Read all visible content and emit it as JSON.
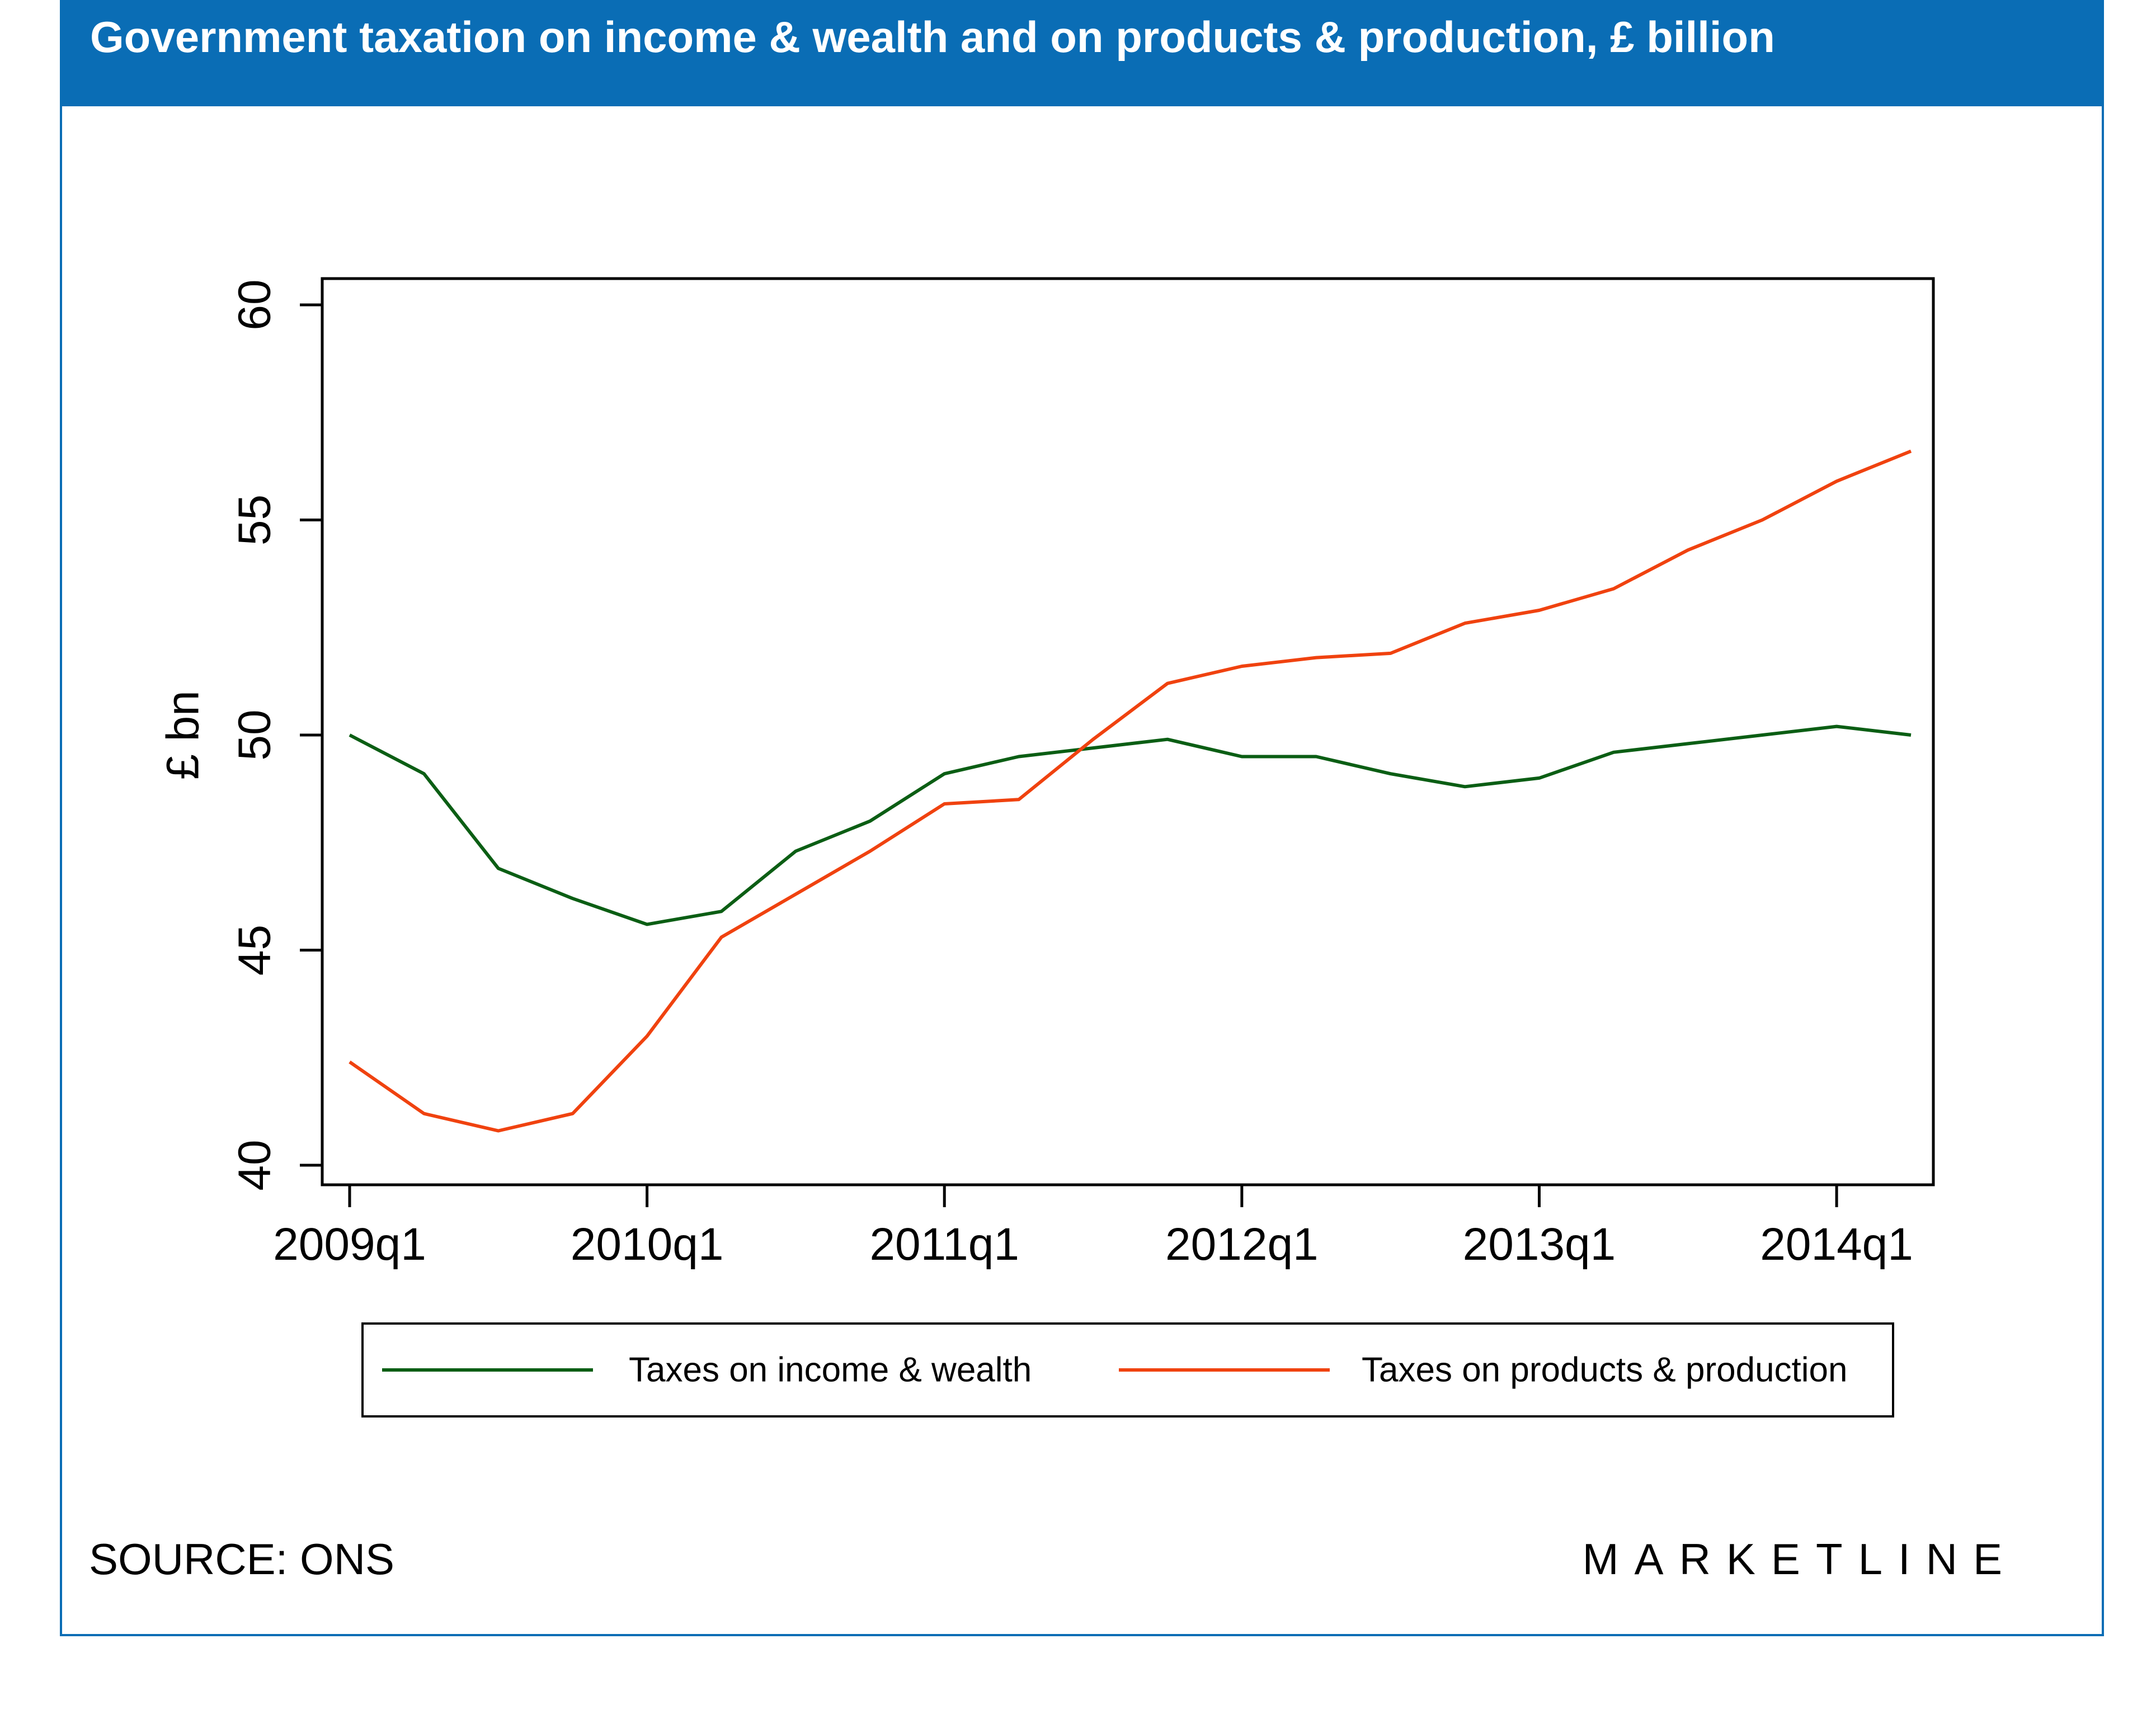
{
  "header": {
    "title": "Government taxation on income & wealth and on products & production, £ billion"
  },
  "footer": {
    "source": "SOURCE: ONS",
    "brand": "MARKETLINE"
  },
  "colors": {
    "accent": "#0a6db5",
    "income": "#0b5e14",
    "products": "#f0420f"
  },
  "chart_data": {
    "type": "line",
    "x": [
      "2009q1",
      "2009q2",
      "2009q3",
      "2009q4",
      "2010q1",
      "2010q2",
      "2010q3",
      "2010q4",
      "2011q1",
      "2011q2",
      "2011q3",
      "2011q4",
      "2012q1",
      "2012q2",
      "2012q3",
      "2012q4",
      "2013q1",
      "2013q2",
      "2013q3",
      "2013q4",
      "2014q1",
      "2014q2"
    ],
    "x_tick_labels": [
      "2009q1",
      "2010q1",
      "2011q1",
      "2012q1",
      "2013q1",
      "2014q1"
    ],
    "ylabel": "£ bn",
    "ylim": [
      40,
      60
    ],
    "yticks": [
      40,
      45,
      50,
      55,
      60
    ],
    "grid": false,
    "legend_position": "bottom",
    "series": [
      {
        "name": "Taxes on income & wealth",
        "color": "#0b5e14",
        "values": [
          50.0,
          49.1,
          46.9,
          46.2,
          45.6,
          45.9,
          47.3,
          48.0,
          49.1,
          49.5,
          49.7,
          49.9,
          49.5,
          49.5,
          49.1,
          48.8,
          49.0,
          49.6,
          49.8,
          50.0,
          50.2,
          50.0
        ]
      },
      {
        "name": "Taxes on products & production",
        "color": "#f0420f",
        "values": [
          42.4,
          41.2,
          40.8,
          41.2,
          43.0,
          45.3,
          46.3,
          47.3,
          48.4,
          48.5,
          49.9,
          51.2,
          51.6,
          51.8,
          51.9,
          52.6,
          52.9,
          53.4,
          54.3,
          55.0,
          55.9,
          56.6
        ]
      }
    ]
  }
}
